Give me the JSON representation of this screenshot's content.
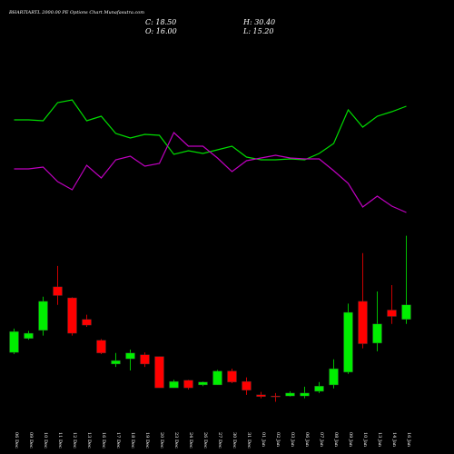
{
  "chart_data": {
    "type": "candlestick",
    "title": "BHARTIARTL 2000.00 PE Options Chart Munafasutra.com",
    "header": [
      "C: 18.50",
      "H: 30.40",
      "O: 16.00",
      "L: 15.20"
    ],
    "categories": [
      "06 Dec",
      "09 Dec",
      "10 Dec",
      "11 Dec",
      "12 Dec",
      "13 Dec",
      "16 Dec",
      "17 Dec",
      "18 Dec",
      "19 Dec",
      "20 Dec",
      "23 Dec",
      "24 Dec",
      "26 Dec",
      "27 Dec",
      "30 Dec",
      "31 Dec",
      "01 Jan",
      "02 Jan",
      "03 Jan",
      "06 Jan",
      "07 Jan",
      "08 Jan",
      "09 Jan",
      "10 Jan",
      "13 Jan",
      "14 Jan",
      "16 Jan"
    ],
    "open": [
      10.3,
      12.7,
      14.1,
      21.6,
      19.7,
      16.0,
      12.4,
      8.3,
      9.2,
      9.9,
      9.6,
      4.2,
      5.5,
      4.7,
      4.7,
      7.1,
      5.3,
      3.0,
      2.8,
      2.8,
      2.8,
      3.6,
      4.7,
      6.9,
      19.1,
      11.9,
      17.6,
      16.0
    ],
    "high": [
      14.4,
      14.0,
      19.9,
      25.2,
      19.8,
      16.8,
      12.6,
      10.2,
      10.8,
      10.3,
      9.6,
      5.6,
      5.6,
      5.3,
      7.3,
      7.5,
      6.0,
      3.5,
      3.3,
      3.6,
      4.4,
      5.2,
      9.1,
      18.7,
      27.4,
      20.8,
      21.9,
      30.4
    ],
    "low": [
      10.0,
      12.5,
      13.2,
      18.5,
      13.2,
      14.7,
      10.0,
      7.8,
      7.2,
      7.8,
      4.2,
      4.2,
      3.9,
      4.5,
      4.7,
      5.0,
      3.0,
      2.4,
      1.8,
      2.7,
      2.4,
      3.3,
      4.1,
      6.6,
      11.0,
      10.5,
      15.2,
      15.2
    ],
    "close": [
      13.9,
      13.6,
      19.1,
      20.1,
      13.6,
      15.0,
      10.2,
      8.9,
      10.2,
      8.3,
      4.2,
      5.3,
      4.2,
      5.2,
      7.1,
      5.2,
      3.8,
      2.7,
      2.7,
      3.3,
      3.3,
      4.5,
      7.5,
      17.2,
      11.8,
      15.2,
      16.5,
      18.5
    ],
    "ylim": [
      0,
      71
    ],
    "up_color": "#00ee00",
    "down_color": "#ff0000",
    "indicator_ylim": [
      0,
      150
    ],
    "indicators": [
      {
        "color": "#00dd00",
        "values": [
          118,
          118,
          117,
          137,
          140,
          117,
          122,
          103,
          98,
          102,
          101,
          80,
          84,
          81,
          85,
          89,
          77,
          74,
          74,
          75,
          74,
          81,
          92,
          129,
          110,
          122,
          127,
          133
        ]
      },
      {
        "color": "#c000c0",
        "values": [
          64,
          64,
          66,
          50,
          41,
          68,
          54,
          74,
          78,
          67,
          70,
          104,
          89,
          89,
          76,
          61,
          73,
          76,
          79,
          76,
          75,
          75,
          62,
          48,
          22,
          34,
          23,
          16
        ]
      }
    ]
  }
}
